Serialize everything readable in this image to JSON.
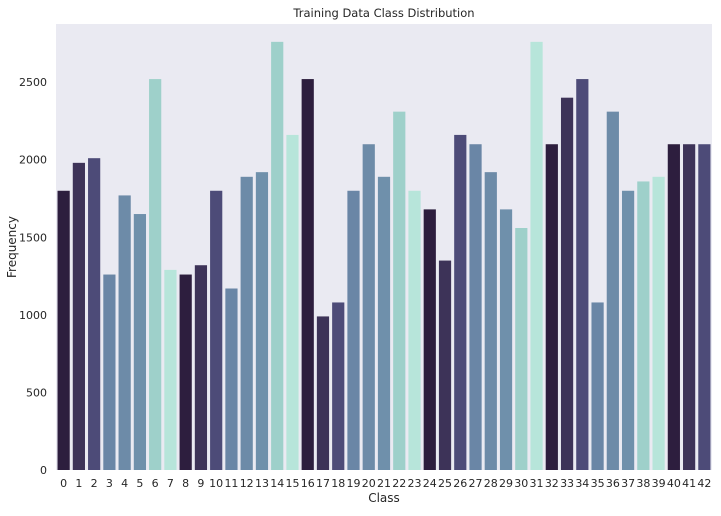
{
  "chart_data": {
    "type": "bar",
    "title": "Training Data Class Distribution",
    "xlabel": "Class",
    "ylabel": "Frequency",
    "categories": [
      "0",
      "1",
      "2",
      "3",
      "4",
      "5",
      "6",
      "7",
      "8",
      "9",
      "10",
      "11",
      "12",
      "13",
      "14",
      "15",
      "16",
      "17",
      "18",
      "19",
      "20",
      "21",
      "22",
      "23",
      "24",
      "25",
      "26",
      "27",
      "28",
      "29",
      "30",
      "31",
      "32",
      "33",
      "34",
      "35",
      "36",
      "37",
      "38",
      "39",
      "40",
      "41",
      "42"
    ],
    "values": [
      1800,
      1980,
      2010,
      1260,
      1770,
      1650,
      2520,
      1290,
      1260,
      1320,
      1800,
      1170,
      1890,
      1920,
      2760,
      2160,
      2520,
      990,
      1080,
      1800,
      2100,
      1890,
      2310,
      1800,
      1680,
      1350,
      2160,
      2100,
      1920,
      1680,
      1560,
      2760,
      2100,
      2400,
      2520,
      1080,
      2310,
      1800,
      1860,
      1890,
      2100,
      2100,
      2100
    ],
    "ylim": [
      0,
      2875
    ],
    "yticks": [
      "0",
      "500",
      "1000",
      "1500",
      "2000",
      "2500"
    ],
    "grid": false,
    "background_color": "#eaeaf2",
    "bar_colors": [
      "#2d1e3e",
      "#3d3358",
      "#4d4b78",
      "#6a86a6",
      "#6d8ba8",
      "#6f90ab",
      "#9ed0ca",
      "#b7e5da",
      "#2d1e3e",
      "#3d3358",
      "#4d4b78",
      "#6a86a6",
      "#6d8ba8",
      "#6f90ab",
      "#9ed0ca",
      "#b7e5da",
      "#2d1e3e",
      "#3d3358",
      "#4d4b78",
      "#6a86a6",
      "#6d8ba8",
      "#6f90ab",
      "#9ed0ca",
      "#b7e5da",
      "#2d1e3e",
      "#3d3358",
      "#4d4b78",
      "#6a86a6",
      "#6d8ba8",
      "#6f90ab",
      "#9ed0ca",
      "#b7e5da",
      "#2d1e3e",
      "#3d3358",
      "#4d4b78",
      "#6a86a6",
      "#6d8ba8",
      "#6f90ab",
      "#9ed0ca",
      "#b7e5da",
      "#2d1e3e",
      "#3d3358",
      "#4d4b78"
    ]
  }
}
